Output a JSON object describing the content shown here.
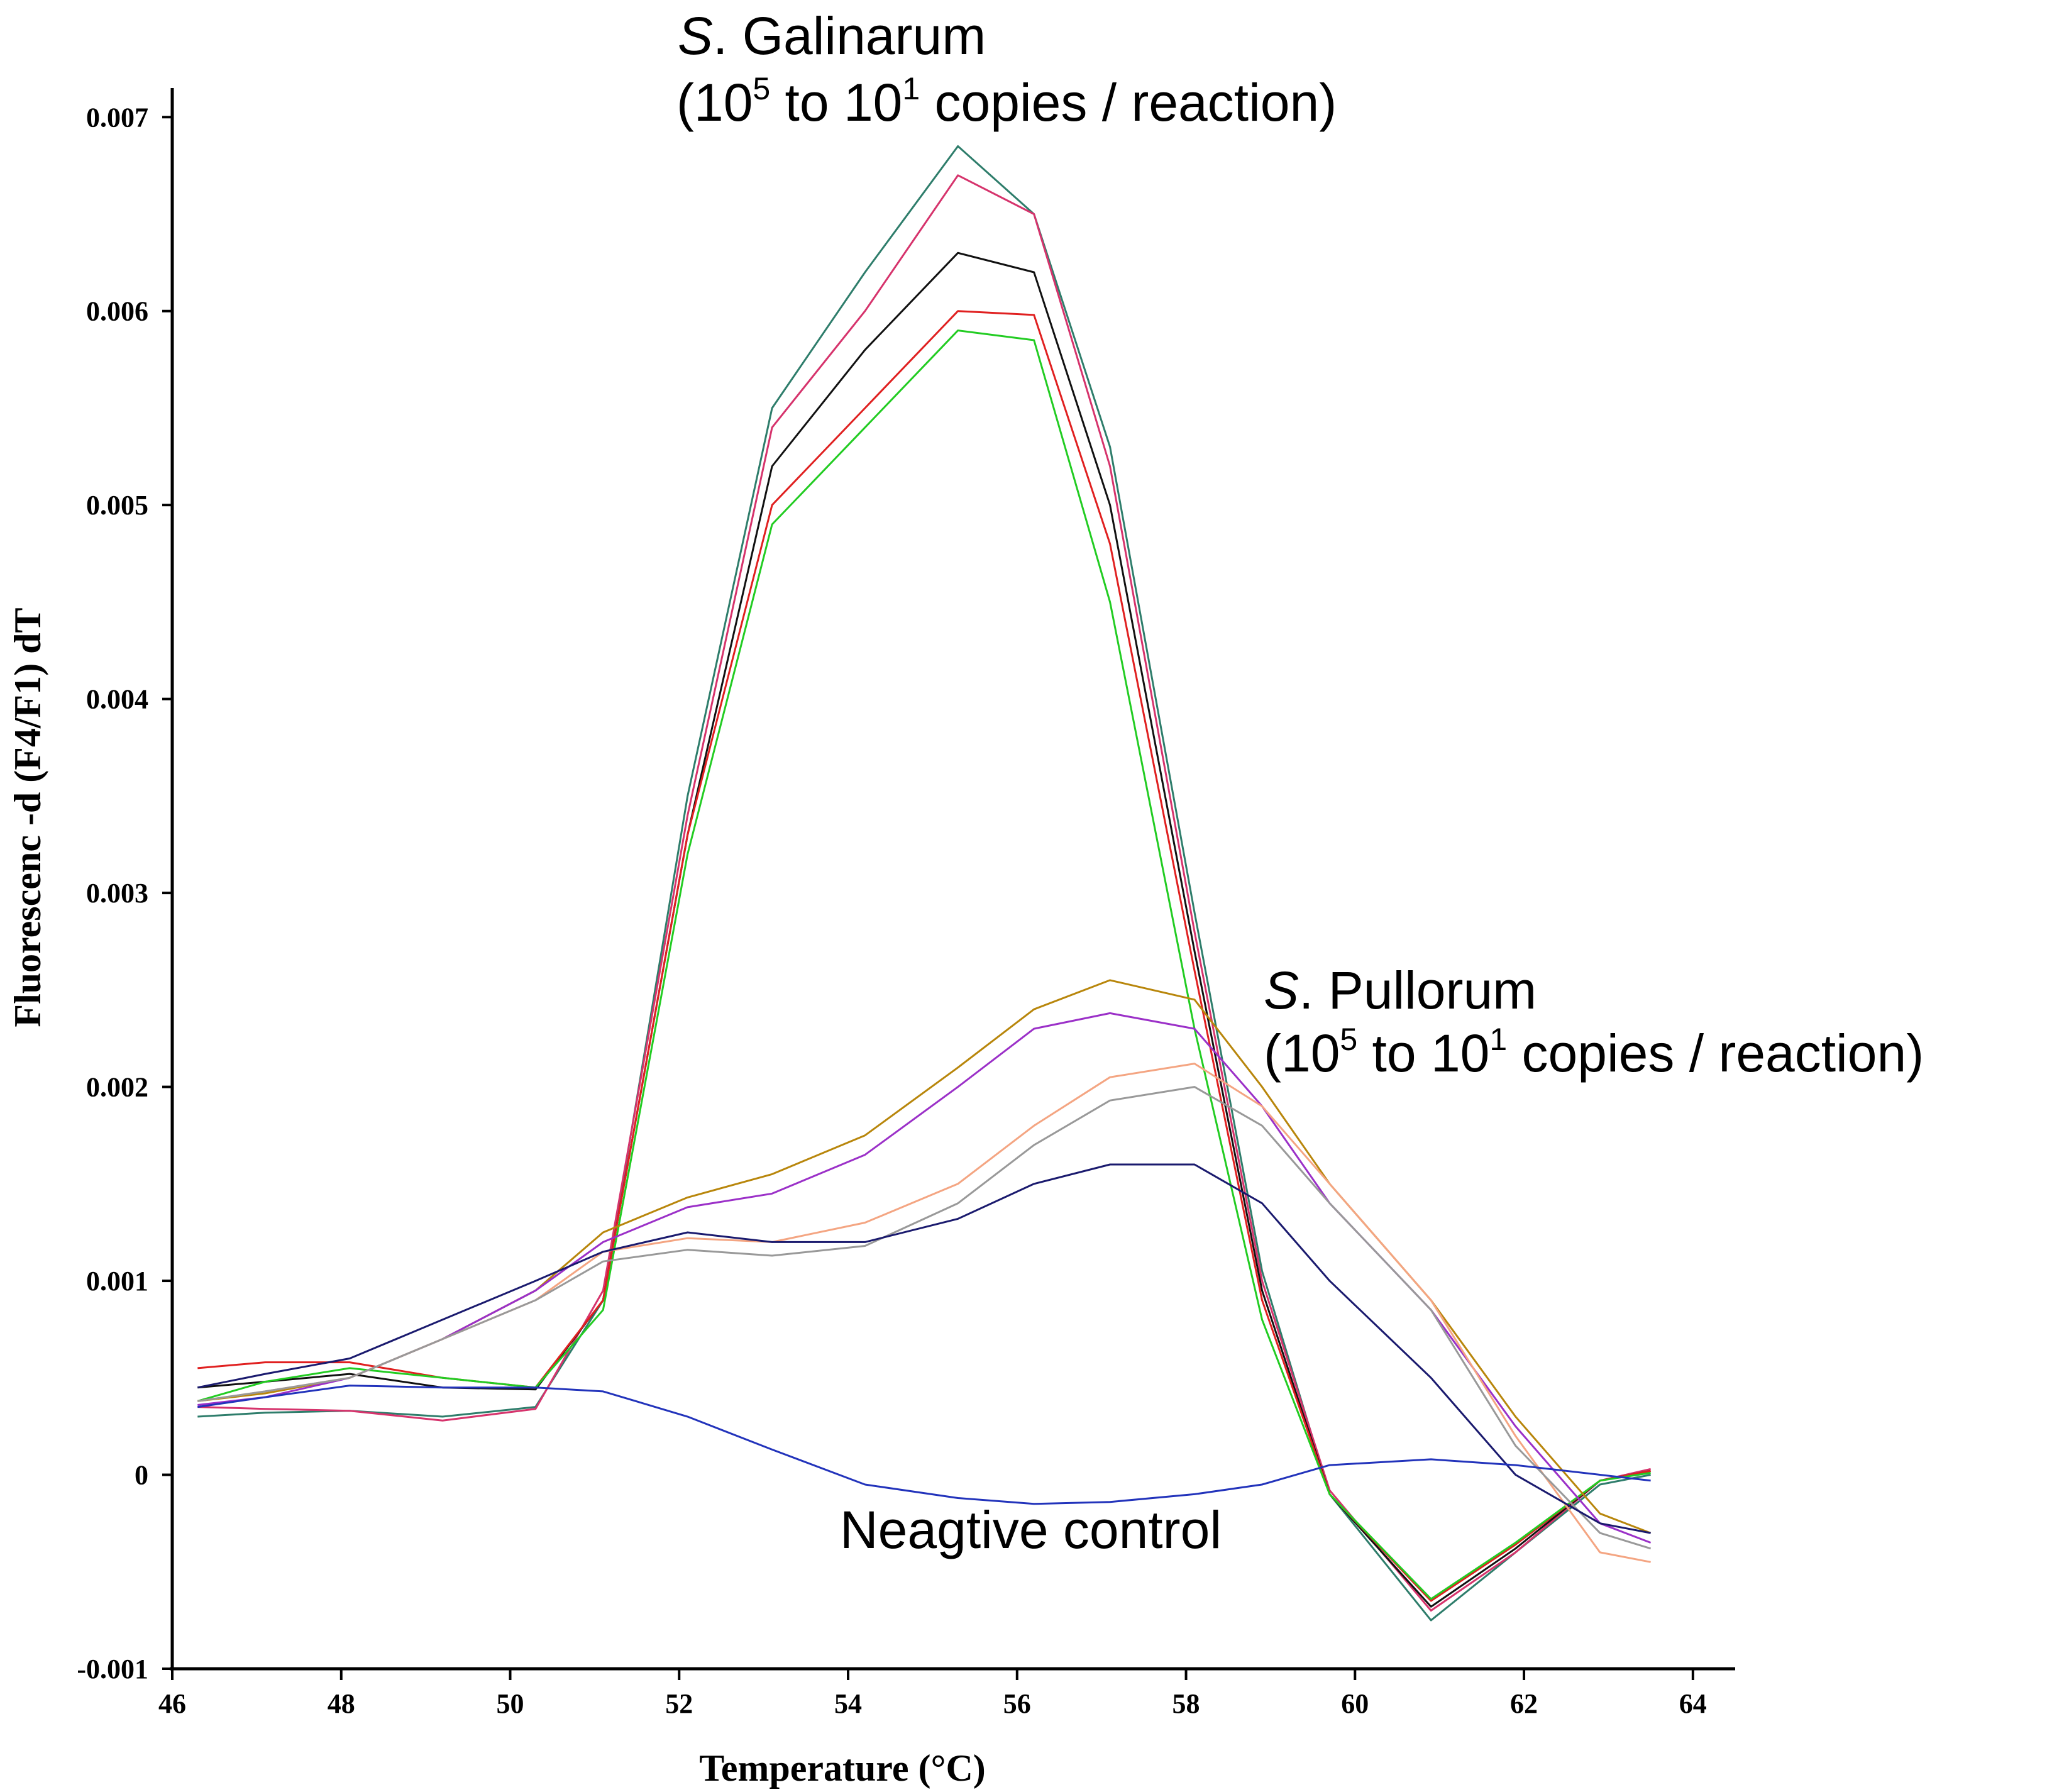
{
  "chart_data": {
    "type": "line",
    "title": "",
    "xlabel": "Temperature (°C)",
    "ylabel": "Fluorescenc -d (F4/F1) dT",
    "xlim": [
      46,
      64.5
    ],
    "ylim": [
      -0.001,
      0.00715
    ],
    "xticks": [
      46,
      48,
      50,
      52,
      54,
      56,
      58,
      60,
      62,
      64
    ],
    "xtick_labels": [
      "46",
      "48",
      "50",
      "52",
      "54",
      "56",
      "58",
      "60",
      "62",
      "64"
    ],
    "yticks": [
      -0.001,
      0,
      0.001,
      0.002,
      0.003,
      0.004,
      0.005,
      0.006,
      0.007
    ],
    "ytick_labels": [
      "-0.001",
      "0",
      "0.001",
      "0.002",
      "0.003",
      "0.004",
      "0.005",
      "0.006",
      "0.007"
    ],
    "grid": false,
    "x": [
      46.3,
      47.1,
      48.1,
      49.2,
      50.3,
      51.1,
      52.1,
      53.1,
      54.2,
      55.3,
      56.2,
      57.1,
      58.1,
      58.9,
      59.7,
      60.9,
      61.9,
      62.9,
      63.5
    ],
    "series": [
      {
        "name": "S. Galinarum 1",
        "color": "#2e7d6b",
        "values": [
          0.0003,
          0.00032,
          0.00033,
          0.0003,
          0.00035,
          0.0009,
          0.0035,
          0.0055,
          0.0062,
          0.00685,
          0.0065,
          0.0053,
          0.0029,
          0.00105,
          -0.0001,
          -0.00075,
          -0.0004,
          -5e-05,
          0.0
        ]
      },
      {
        "name": "S. Galinarum 2",
        "color": "#d6336c",
        "values": [
          0.00035,
          0.00034,
          0.00033,
          0.00028,
          0.00034,
          0.00095,
          0.0034,
          0.0054,
          0.006,
          0.0067,
          0.0065,
          0.0052,
          0.0028,
          0.001,
          -8e-05,
          -0.0007,
          -0.0004,
          -3e-05,
          3e-05
        ]
      },
      {
        "name": "S. Galinarum 3",
        "color": "#111111",
        "values": [
          0.00045,
          0.00048,
          0.00052,
          0.00045,
          0.00044,
          0.0009,
          0.0033,
          0.0052,
          0.0058,
          0.0063,
          0.0062,
          0.005,
          0.0027,
          0.00095,
          -0.0001,
          -0.00068,
          -0.00038,
          -3e-05,
          2e-05
        ]
      },
      {
        "name": "S. Galinarum 4",
        "color": "#e02020",
        "values": [
          0.00055,
          0.00058,
          0.00058,
          0.0005,
          0.00045,
          0.0009,
          0.0033,
          0.005,
          0.0055,
          0.006,
          0.00598,
          0.0048,
          0.0026,
          0.0009,
          -0.0001,
          -0.00065,
          -0.00036,
          -3e-05,
          2e-05
        ]
      },
      {
        "name": "S. Galinarum 5",
        "color": "#22cc22",
        "values": [
          0.00038,
          0.00048,
          0.00055,
          0.0005,
          0.00045,
          0.00085,
          0.0032,
          0.0049,
          0.0054,
          0.0059,
          0.00585,
          0.0045,
          0.0023,
          0.0008,
          -0.0001,
          -0.00064,
          -0.00035,
          -3e-05,
          1e-05
        ]
      },
      {
        "name": "S. Pullorum 1",
        "color": "#b8860b",
        "values": [
          0.00038,
          0.00042,
          0.0005,
          0.0007,
          0.00095,
          0.00125,
          0.00143,
          0.00155,
          0.00175,
          0.0021,
          0.0024,
          0.00255,
          0.00245,
          0.002,
          0.0015,
          0.0009,
          0.0003,
          -0.0002,
          -0.0003
        ]
      },
      {
        "name": "S. Pullorum 2",
        "color": "#9b30c8",
        "values": [
          0.00036,
          0.0004,
          0.0005,
          0.0007,
          0.00095,
          0.0012,
          0.00138,
          0.00145,
          0.00165,
          0.002,
          0.0023,
          0.00238,
          0.0023,
          0.0019,
          0.0014,
          0.00085,
          0.00025,
          -0.00025,
          -0.00035
        ]
      },
      {
        "name": "S. Pullorum 3",
        "color": "#f4a582",
        "values": [
          0.00038,
          0.00043,
          0.0005,
          0.0007,
          0.0009,
          0.00115,
          0.00122,
          0.0012,
          0.0013,
          0.0015,
          0.0018,
          0.00205,
          0.00212,
          0.0019,
          0.0015,
          0.0009,
          0.0002,
          -0.0004,
          -0.00045
        ]
      },
      {
        "name": "S. Pullorum 4",
        "color": "#999999",
        "values": [
          0.00038,
          0.00043,
          0.0005,
          0.0007,
          0.0009,
          0.0011,
          0.00116,
          0.00113,
          0.00118,
          0.0014,
          0.0017,
          0.00193,
          0.002,
          0.0018,
          0.0014,
          0.00085,
          0.00015,
          -0.0003,
          -0.00038
        ]
      },
      {
        "name": "S. Pullorum 5",
        "color": "#1a1a6e",
        "values": [
          0.00045,
          0.00052,
          0.0006,
          0.0008,
          0.001,
          0.00115,
          0.00125,
          0.0012,
          0.0012,
          0.00132,
          0.0015,
          0.0016,
          0.0016,
          0.0014,
          0.001,
          0.0005,
          0.0,
          -0.00025,
          -0.0003
        ]
      },
      {
        "name": "Negative control",
        "color": "#2233bb",
        "values": [
          0.00035,
          0.0004,
          0.00046,
          0.00045,
          0.00045,
          0.00043,
          0.0003,
          0.00013,
          -5e-05,
          -0.00012,
          -0.00015,
          -0.00014,
          -0.0001,
          -5e-05,
          5e-05,
          8e-05,
          5e-05,
          0.0,
          -3e-05
        ]
      }
    ],
    "annotations": [
      {
        "label_italic": "S",
        "label_rest": ". Galinarum",
        "range_prefix": "(10",
        "range_exp1": "5",
        "range_mid": " to 10",
        "range_exp2": "1",
        "range_suffix": " copies / reaction)"
      },
      {
        "label_italic": "S",
        "label_rest": ". Pullorum",
        "range_prefix": "(10",
        "range_exp1": "5",
        "range_mid": " to 10",
        "range_exp2": "1",
        "range_suffix": " copies / reaction)"
      },
      {
        "text": "Neagtive control"
      }
    ]
  }
}
